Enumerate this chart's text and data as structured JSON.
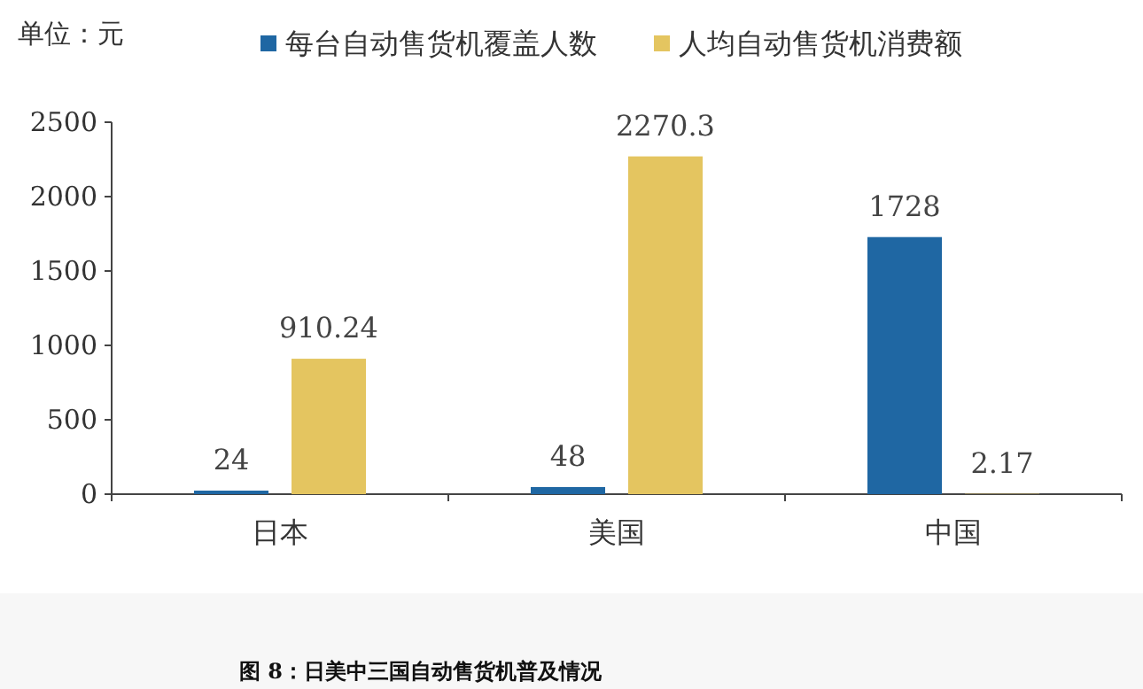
{
  "chart_data": {
    "type": "bar",
    "title": "图 8：日美中三国自动售货机普及情况",
    "ylabel": "单位：元",
    "categories": [
      "日本",
      "美国",
      "中国"
    ],
    "series": [
      {
        "name": "每台自动售货机覆盖人数",
        "color": "#1f67a3",
        "values": [
          24,
          48,
          1728
        ]
      },
      {
        "name": "人均自动售货机消费额",
        "color": "#e4c560",
        "values": [
          910.24,
          2270.3,
          2.17
        ]
      }
    ],
    "ylim": [
      0,
      2500
    ],
    "yticks": [
      0,
      500,
      1000,
      1500,
      2000,
      2500
    ],
    "data_labels": true,
    "legend": "top",
    "grid": false
  }
}
